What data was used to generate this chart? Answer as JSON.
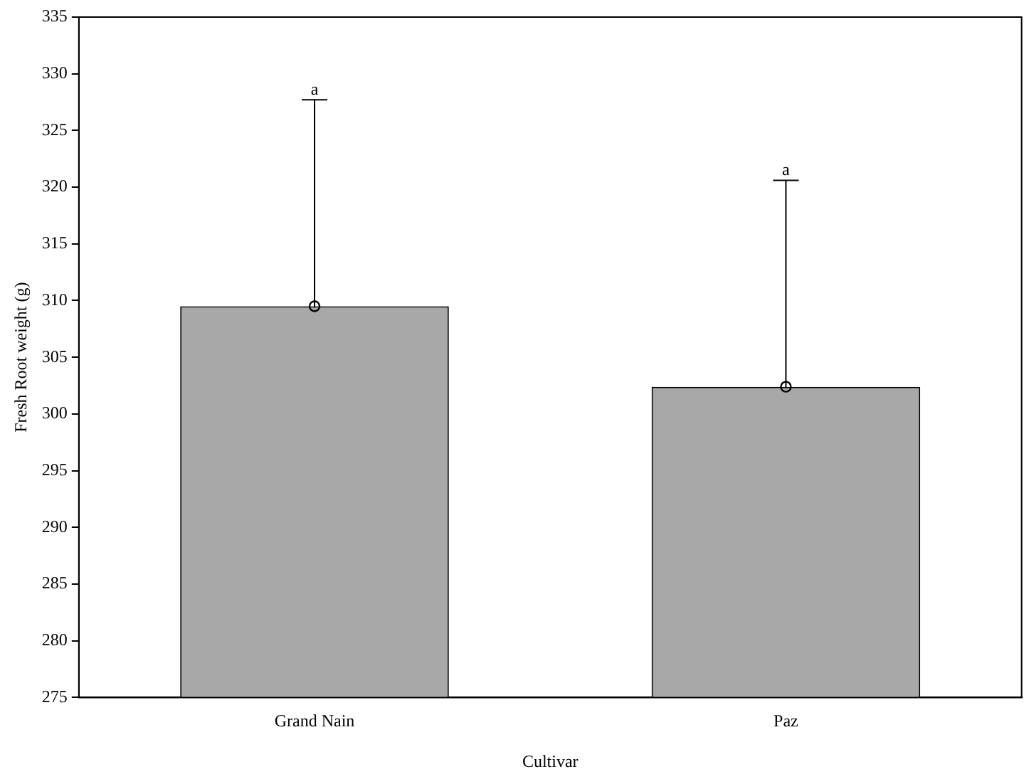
{
  "chart_data": {
    "type": "bar",
    "xlabel": "Cultivar",
    "ylabel": "Fresh Root weight (g)",
    "categories": [
      "Grand Nain",
      "Paz"
    ],
    "series": [
      {
        "color": "#a8a8a8",
        "values": [
          309.5,
          302.4
        ],
        "errors": [
          18.2,
          18.2
        ]
      },
      {
        "type": "scatter",
        "color": "#000000",
        "x": [
          "Grand Nain",
          "Paz"
        ],
        "values": [
          309.5,
          302.4
        ]
      }
    ],
    "marker": "circle",
    "ylim": [
      275,
      335
    ],
    "yticks": [
      275,
      280,
      285,
      290,
      295,
      300,
      305,
      310,
      315,
      320,
      325,
      330,
      335
    ],
    "grid": false,
    "legend": false,
    "annotations": [
      {
        "text": "a",
        "x": "Grand Nain",
        "y": 327.7
      },
      {
        "text": "a",
        "x": "Paz",
        "y": 320.6
      }
    ]
  }
}
